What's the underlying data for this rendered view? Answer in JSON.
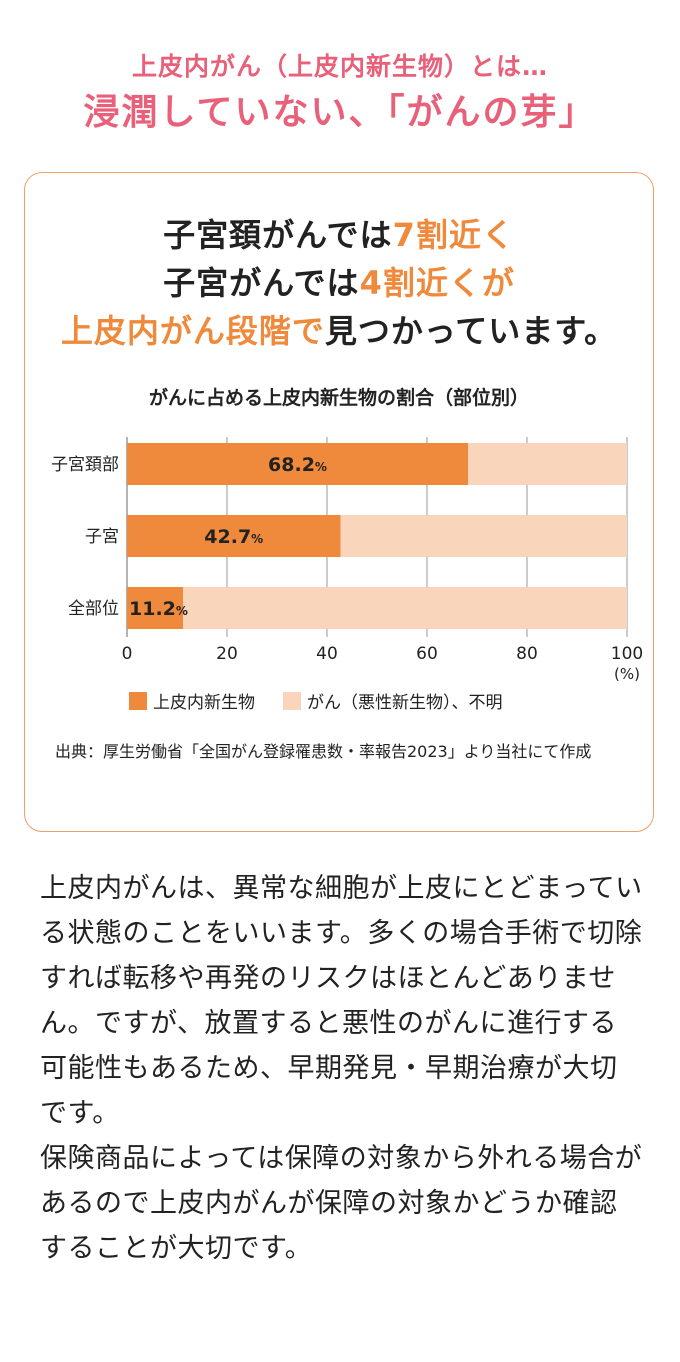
{
  "header": {
    "subtitle": "上皮内がん（上皮内新生物）とは…",
    "title": "浸潤していない、「がんの芽」"
  },
  "card": {
    "lead_lines": [
      [
        {
          "text": "子宮頚がんでは",
          "hl": false
        },
        {
          "text": "7割近く",
          "hl": true
        }
      ],
      [
        {
          "text": "子宮がんでは",
          "hl": false
        },
        {
          "text": "4割近くが",
          "hl": true
        }
      ],
      [
        {
          "text": "上皮内がん段階で",
          "hl": true
        },
        {
          "text": "見つかっています。",
          "hl": false
        }
      ]
    ],
    "source": "出典：厚生労働省「全国がん登録罹患数・率報告2023」より当社にて作成"
  },
  "colors": {
    "accent_pink": "#e8607a",
    "accent_orange": "#ef8a3c",
    "bar_light": "#f8d5bb",
    "card_border": "#eea06a"
  },
  "chart_data": {
    "type": "bar",
    "orientation": "horizontal",
    "stacked": true,
    "title": "がんに占める上皮内新生物の割合（部位別）",
    "categories": [
      "子宮頚部",
      "子宮",
      "全部位"
    ],
    "series": [
      {
        "name": "上皮内新生物",
        "values": [
          68.2,
          42.7,
          11.2
        ],
        "color": "#ef8a3c"
      },
      {
        "name": "がん（悪性新生物）、不明",
        "values": [
          31.8,
          57.3,
          88.8
        ],
        "color": "#f8d5bb"
      }
    ],
    "data_labels": [
      {
        "num": "68.2",
        "unit": "%"
      },
      {
        "num": "42.7",
        "unit": "%"
      },
      {
        "num": "11.2",
        "unit": "%"
      }
    ],
    "x_ticks": [
      "0",
      "20",
      "40",
      "60",
      "80",
      "100"
    ],
    "x_unit": "(%)",
    "xlim": [
      0,
      100
    ],
    "grid": true,
    "legend": "bottom-left"
  },
  "body": {
    "paragraphs": [
      "上皮内がんは、異常な細胞が上皮にとどまっている状態のことをいいます。多くの場合手術で切除すれば転移や再発のリスクはほとんどありません。ですが、放置すると悪性のがんに進行する可能性もあるため、早期発見・早期治療が大切です。",
      "保険商品によっては保障の対象から外れる場合があるので上皮内がんが保障の対象かどうか確認することが大切です。"
    ]
  }
}
